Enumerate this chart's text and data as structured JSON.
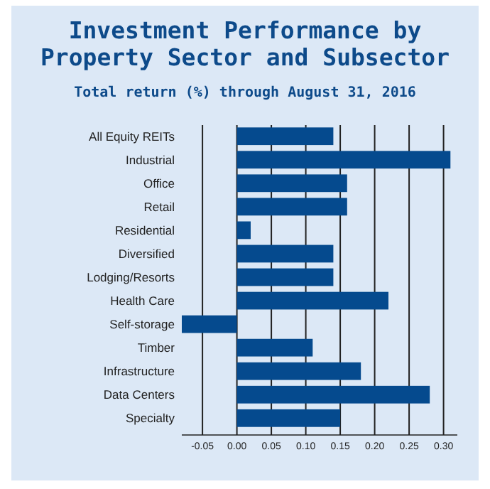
{
  "chart_data": {
    "type": "bar",
    "orientation": "horizontal",
    "title": "Investment Performance by Property Sector and Subsector",
    "subtitle": "Total return (%) through August 31, 2016",
    "categories": [
      "All Equity REITs",
      "Industrial",
      "Office",
      "Retail",
      "Residential",
      "Diversified",
      "Lodging/Resorts",
      "Health Care",
      "Self-storage",
      "Timber",
      "Infrastructure",
      "Data Centers",
      "Specialty"
    ],
    "values": [
      0.14,
      0.31,
      0.16,
      0.16,
      0.02,
      0.14,
      0.14,
      0.22,
      -0.08,
      0.11,
      0.18,
      0.28,
      0.15
    ],
    "color": "#054a8e",
    "xlim": [
      -0.08,
      0.32
    ],
    "xticks": [
      {
        "value": -0.05,
        "label": "-0.05"
      },
      {
        "value": 0,
        "label": "0.00"
      },
      {
        "value": 0.05,
        "label": "0.05"
      },
      {
        "value": 0.1,
        "label": "0.10"
      },
      {
        "value": 0.15,
        "label": "0.15"
      },
      {
        "value": 0.2,
        "label": "0.20"
      },
      {
        "value": 0.25,
        "label": "0.25"
      },
      {
        "value": 0.3,
        "label": "0.30"
      }
    ],
    "grid": "x"
  }
}
